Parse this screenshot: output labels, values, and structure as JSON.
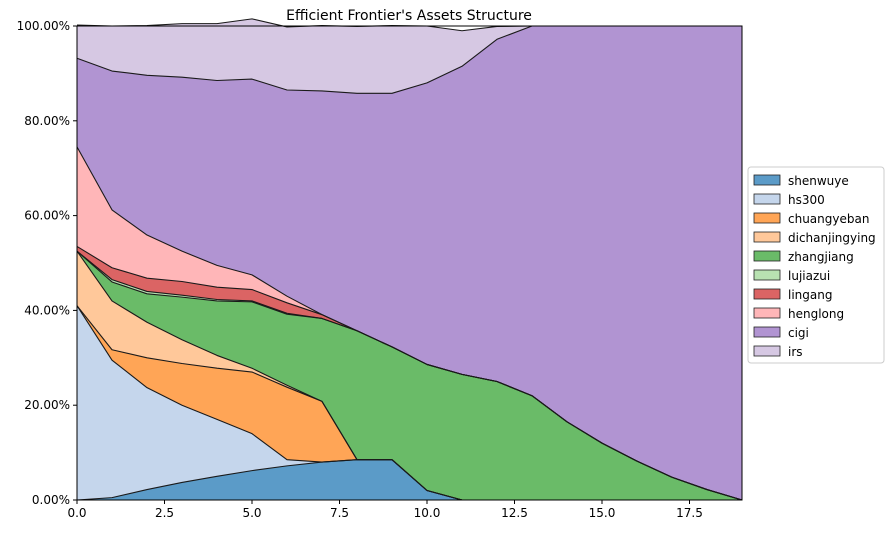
{
  "chart_data": {
    "type": "area",
    "stacked": true,
    "title": "Efficient Frontier's Assets Structure",
    "xlabel": "",
    "ylabel": "",
    "xlim": [
      0,
      19
    ],
    "ylim": [
      0,
      100
    ],
    "x_ticks": [
      0.0,
      2.5,
      5.0,
      7.5,
      10.0,
      12.5,
      15.0,
      17.5
    ],
    "x_tick_labels": [
      "0.0",
      "2.5",
      "5.0",
      "7.5",
      "10.0",
      "12.5",
      "15.0",
      "17.5"
    ],
    "y_ticks": [
      0,
      20,
      40,
      60,
      80,
      100
    ],
    "y_tick_labels": [
      "0.00%",
      "20.00%",
      "40.00%",
      "60.00%",
      "80.00%",
      "100.00%"
    ],
    "grid": true,
    "legend_position": "right",
    "x": [
      0,
      1,
      2,
      3,
      4,
      5,
      6,
      7,
      8,
      9,
      10,
      11,
      12,
      13,
      14,
      15,
      16,
      17,
      18,
      19
    ],
    "series": [
      {
        "name": "shenwuye",
        "color": "#5b9bc8",
        "values": [
          0,
          0.5,
          2.2,
          3.7,
          5.0,
          6.2,
          7.2,
          8.0,
          8.5,
          8.5,
          2.0,
          0,
          0,
          0,
          0,
          0,
          0,
          0,
          0,
          0
        ]
      },
      {
        "name": "hs300",
        "color": "#c5d6ec",
        "values": [
          41.0,
          29.0,
          21.5,
          16.3,
          12.0,
          7.8,
          1.3,
          0,
          0,
          0,
          0,
          0,
          0,
          0,
          0,
          0,
          0,
          0,
          0,
          0
        ]
      },
      {
        "name": "chuangyeban",
        "color": "#ffa556",
        "values": [
          0,
          2.2,
          6.3,
          8.8,
          10.8,
          13.0,
          15.3,
          12.8,
          0,
          0,
          0,
          0,
          0,
          0,
          0,
          0,
          0,
          0,
          0,
          0
        ]
      },
      {
        "name": "dichanjingying",
        "color": "#ffc89a",
        "values": [
          11.5,
          10.3,
          7.5,
          5.0,
          2.7,
          0.8,
          0.4,
          0,
          0,
          0,
          0,
          0,
          0,
          0,
          0,
          0,
          0,
          0,
          0,
          0
        ]
      },
      {
        "name": "zhangjiang",
        "color": "#6abb68",
        "values": [
          0,
          4.0,
          6.0,
          9.0,
          11.5,
          14.0,
          15.0,
          17.5,
          27.2,
          23.8,
          26.6,
          26.5,
          25.0,
          22.0,
          16.5,
          12.0,
          8.2,
          4.8,
          2.2,
          0
        ]
      },
      {
        "name": "lujiazui",
        "color": "#b8e2b1",
        "values": [
          0,
          0.5,
          0.5,
          0.4,
          0.3,
          0.2,
          0.2,
          0,
          0,
          0,
          0,
          0,
          0,
          0,
          0,
          0,
          0,
          0,
          0,
          0
        ]
      },
      {
        "name": "lingang",
        "color": "#db6464",
        "values": [
          1.0,
          2.5,
          2.8,
          2.9,
          2.6,
          2.4,
          2.2,
          0.8,
          0,
          0,
          0,
          0,
          0,
          0,
          0,
          0,
          0,
          0,
          0,
          0
        ]
      },
      {
        "name": "henglong",
        "color": "#ffb6b8",
        "values": [
          21.0,
          12.2,
          9.1,
          6.4,
          4.6,
          3.1,
          1.4,
          0,
          0,
          0,
          0,
          0,
          0,
          0,
          0,
          0,
          0,
          0,
          0,
          0
        ]
      },
      {
        "name": "cigi",
        "color": "#b194d2",
        "values": [
          18.7,
          29.3,
          33.7,
          36.7,
          39.0,
          41.3,
          43.5,
          47.2,
          50.1,
          53.5,
          59.4,
          65.0,
          72.2,
          78.0,
          83.5,
          88.0,
          91.8,
          95.2,
          97.8,
          100
        ]
      },
      {
        "name": "irs",
        "color": "#d6c8e3",
        "values": [
          7.0,
          9.5,
          10.5,
          11.3,
          12.0,
          12.7,
          13.3,
          13.8,
          14.1,
          14.3,
          12.0,
          7.5,
          2.7,
          0,
          0,
          0,
          0,
          0,
          0,
          0
        ]
      }
    ]
  }
}
